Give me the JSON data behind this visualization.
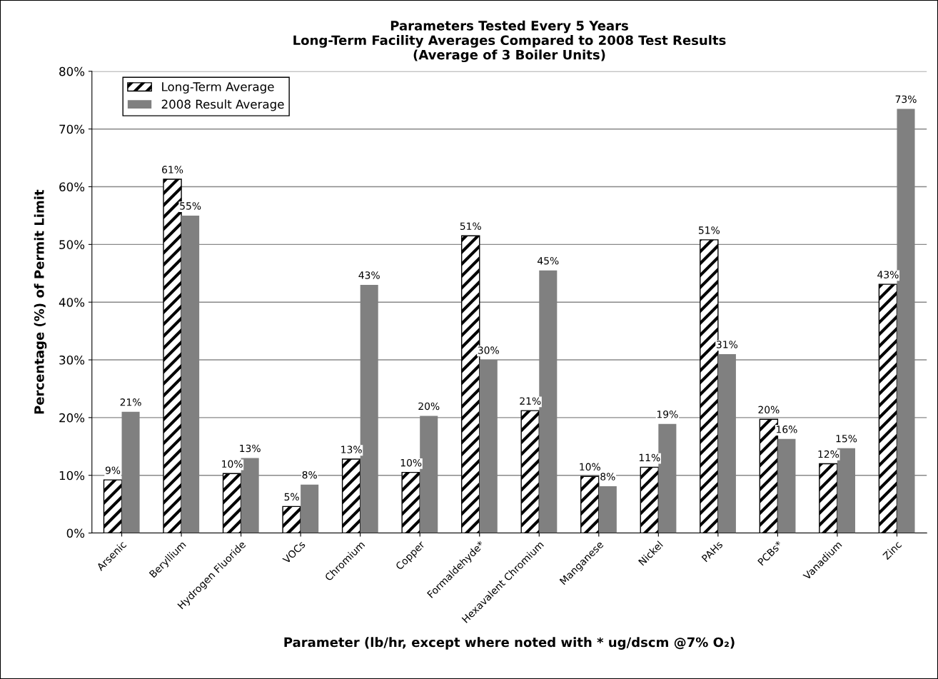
{
  "chart_data": {
    "type": "bar",
    "title": "Parameters Tested Every 5 Years\nLong-Term Facility Averages Compared to 2008 Test Results\n(Average of 3 Boiler Units)",
    "xlabel": "Parameter (lb/hr, except where noted with * ug/dscm @7% O₂)",
    "ylabel": "Percentage (%) of Permit Limit",
    "categories": [
      "Arsenic",
      "Beryllium",
      "Hydrogen Fluoride",
      "VOCs",
      "Chromium",
      "Copper",
      "Formaldehyde*",
      "Hexavalent Chromium",
      "Manganese",
      "Nickel",
      "PAHs",
      "PCBs*",
      "Vanadium",
      "Zinc"
    ],
    "series": [
      {
        "name": "Long-Term Average",
        "color": "#000000",
        "values": [
          9.2,
          61.3,
          10.3,
          4.6,
          12.8,
          10.5,
          51.5,
          21.2,
          9.8,
          11.4,
          50.8,
          19.7,
          12.0,
          43.1
        ],
        "value_labels": [
          "9%",
          "61%",
          "10%",
          "5%",
          "13%",
          "10%",
          "51%",
          "21%",
          "10%",
          "11%",
          "51%",
          "20%",
          "12%",
          "43%"
        ]
      },
      {
        "name": "2008 Result Average",
        "color": "#808080",
        "values": [
          21.0,
          55.0,
          13.0,
          8.4,
          43.0,
          20.3,
          30.0,
          45.5,
          8.1,
          18.9,
          31.0,
          16.3,
          14.7,
          73.5
        ],
        "value_labels": [
          "21%",
          "55%",
          "13%",
          "8%",
          "43%",
          "20%",
          "30%",
          "45%",
          "8%",
          "19%",
          "31%",
          "16%",
          "15%",
          "73%"
        ]
      }
    ],
    "ylim": [
      0,
      80
    ],
    "yticks": [
      {
        "value": 0,
        "label": "0%"
      },
      {
        "value": 10,
        "label": "10%"
      },
      {
        "value": 20,
        "label": "20%"
      },
      {
        "value": 30,
        "label": "30%"
      },
      {
        "value": 40,
        "label": "40%"
      },
      {
        "value": 50,
        "label": "50%"
      },
      {
        "value": 60,
        "label": "60%"
      },
      {
        "value": 70,
        "label": "70%"
      },
      {
        "value": 80,
        "label": "80%"
      }
    ],
    "grid": "y",
    "legend": "top left"
  }
}
